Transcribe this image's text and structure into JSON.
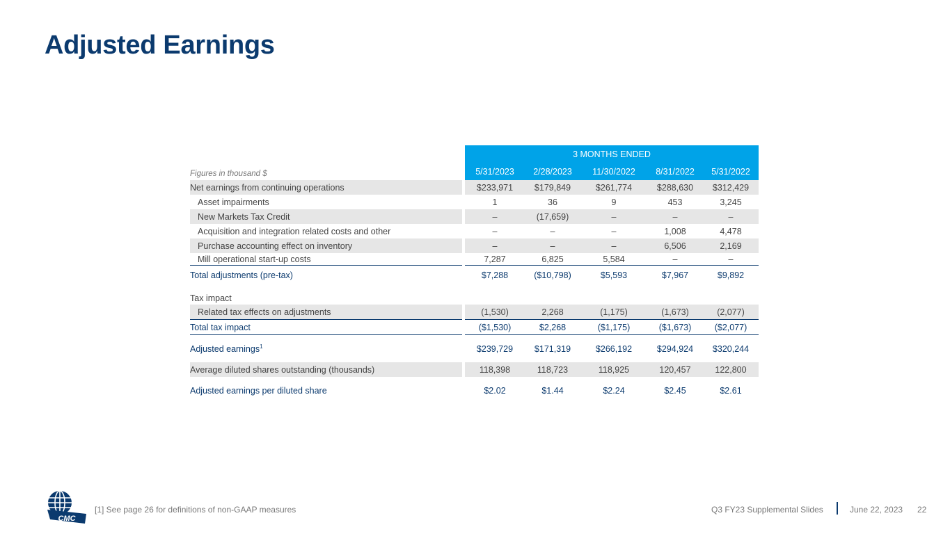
{
  "title": "Adjusted Earnings",
  "table": {
    "group_header": "3 MONTHS ENDED",
    "figures_note": "Figures in thousand $",
    "columns": [
      "5/31/2023",
      "2/28/2023",
      "11/30/2022",
      "8/31/2022",
      "5/31/2022"
    ],
    "rows": [
      {
        "label": "Net earnings from continuing operations",
        "values": [
          "$233,971",
          "$179,849",
          "$261,774",
          "$288,630",
          "$312,429"
        ]
      },
      {
        "label": "Asset impairments",
        "values": [
          "1",
          "36",
          "9",
          "453",
          "3,245"
        ]
      },
      {
        "label": "New Markets Tax Credit",
        "values": [
          "–",
          "(17,659)",
          "–",
          "–",
          "–"
        ]
      },
      {
        "label": "Acquisition and integration related costs and other",
        "values": [
          "–",
          "–",
          "–",
          "1,008",
          "4,478"
        ]
      },
      {
        "label": "Purchase accounting effect on inventory",
        "values": [
          "–",
          "–",
          "–",
          "6,506",
          "2,169"
        ]
      },
      {
        "label": "Mill operational start-up costs",
        "values": [
          "7,287",
          "6,825",
          "5,584",
          "–",
          "–"
        ]
      },
      {
        "label": "Total adjustments (pre-tax)",
        "values": [
          "$7,288",
          "($10,798)",
          "$5,593",
          "$7,967",
          "$9,892"
        ]
      },
      {
        "label": "Tax impact",
        "values": []
      },
      {
        "label": "Related tax effects on adjustments",
        "values": [
          "(1,530)",
          "2,268",
          "(1,175)",
          "(1,673)",
          "(2,077)"
        ]
      },
      {
        "label": "Total tax impact",
        "values": [
          "($1,530)",
          "$2,268",
          "($1,175)",
          "($1,673)",
          "($2,077)"
        ]
      },
      {
        "label": "Adjusted earnings",
        "sup": "1",
        "values": [
          "$239,729",
          "$171,319",
          "$266,192",
          "$294,924",
          "$320,244"
        ]
      },
      {
        "label": "Average diluted shares outstanding (thousands)",
        "values": [
          "118,398",
          "118,723",
          "118,925",
          "120,457",
          "122,800"
        ]
      },
      {
        "label": "Adjusted earnings per diluted share",
        "values": [
          "$2.02",
          "$1.44",
          "$2.24",
          "$2.45",
          "$2.61"
        ]
      }
    ]
  },
  "footer": {
    "footnote": "[1] See page 26 for definitions of non-GAAP measures",
    "deck_title": "Q3 FY23 Supplemental Slides",
    "date": "June 22, 2023",
    "page_number": "22",
    "logo_text": "CMC",
    "logo_icon": "globe-icon"
  },
  "colors": {
    "brand": "#0b3a6e",
    "header_band": "#00a3e8",
    "row_shade": "#e6e6e6"
  }
}
